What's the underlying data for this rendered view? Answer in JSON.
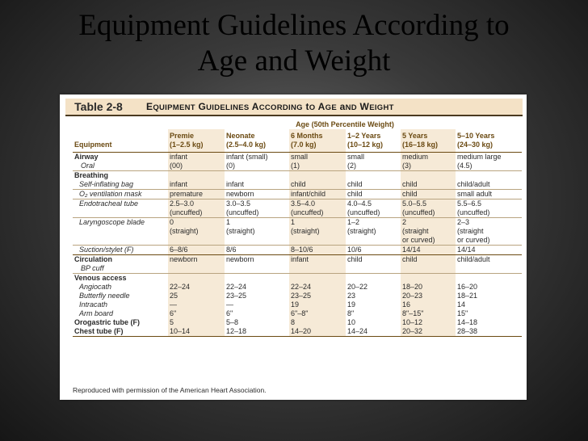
{
  "slide": {
    "title_line1": "Equipment Guidelines According to",
    "title_line2": "Age and Weight"
  },
  "table": {
    "number": "Table 2-8",
    "name": "Equipment Guidelines According to Age and Weight",
    "age_header": "Age (50th Percentile Weight)",
    "columns": [
      {
        "l1": "Equipment",
        "l2": ""
      },
      {
        "l1": "Premie",
        "l2": "(1–2.5 kg)"
      },
      {
        "l1": "Neonate",
        "l2": "(2.5–4.0 kg)"
      },
      {
        "l1": "6 Months",
        "l2": "(7.0 kg)"
      },
      {
        "l1": "1–2 Years",
        "l2": "(10–12 kg)"
      },
      {
        "l1": "5 Years",
        "l2": "(16–18 kg)"
      },
      {
        "l1": "5–10 Years",
        "l2": "(24–30 kg)"
      }
    ],
    "rows": {
      "airway": {
        "label": "Airway",
        "sub": "Oral",
        "v": [
          "infant\n(00)",
          "infant (small)\n(0)",
          "small\n(1)",
          "small\n(2)",
          "medium\n(3)",
          "medium large\n(4.5)"
        ]
      },
      "breathing": {
        "label": "Breathing"
      },
      "bag": {
        "label": "Self-inflating bag",
        "v": [
          "infant",
          "infant",
          "child",
          "child",
          "child",
          "child/adult"
        ]
      },
      "mask": {
        "label": "O₂ ventilation mask",
        "v": [
          "premature",
          "newborn",
          "infant/child",
          "child",
          "child",
          "small adult"
        ]
      },
      "tube": {
        "label": "Endotracheal tube",
        "v": [
          "2.5–3.0\n(uncuffed)",
          "3.0–3.5\n(uncuffed)",
          "3.5–4.0\n(uncuffed)",
          "4.0–4.5\n(uncuffed)",
          "5.0–5.5\n(uncuffed)",
          "5.5–6.5\n(uncuffed)"
        ]
      },
      "blade": {
        "label": "Laryngoscope blade",
        "v": [
          "0\n(straight)",
          "1\n(straight)",
          "1\n(straight)",
          "1–2\n(straight)",
          "2\n(straight\nor curved)",
          "2–3\n(straight\nor curved)"
        ]
      },
      "suction": {
        "label": "Suction/stylet (F)",
        "v": [
          "6–8/6",
          "8/6",
          "8–10/6",
          "10/6",
          "14/14",
          "14/14"
        ]
      },
      "circulation": {
        "label": "Circulation",
        "sub": "BP cuff",
        "v": [
          "newborn",
          "newborn",
          "infant",
          "child",
          "child",
          "child/adult"
        ]
      },
      "venous": {
        "label": "Venous access"
      },
      "angio": {
        "label": "Angiocath",
        "v": [
          "22–24",
          "22–24",
          "22–24",
          "20–22",
          "18–20",
          "16–20"
        ]
      },
      "butterfly": {
        "label": "Butterfly needle",
        "v": [
          "25",
          "23–25",
          "23–25",
          "23",
          "20–23",
          "18–21"
        ]
      },
      "intracath": {
        "label": "Intracath",
        "v": [
          "—",
          "—",
          "19",
          "19",
          "16",
          "14"
        ]
      },
      "armboard": {
        "label": "Arm board",
        "v": [
          "6\"",
          "6\"",
          "6\"–8\"",
          "8\"",
          "8\"–15\"",
          "15\""
        ]
      },
      "orogastric": {
        "label": "Orogastric tube (F)",
        "v": [
          "5",
          "5–8",
          "8",
          "10",
          "10–12",
          "14–18"
        ]
      },
      "chest": {
        "label": "Chest tube (F)",
        "v": [
          "10–14",
          "12–18",
          "14–20",
          "14–24",
          "20–32",
          "28–38"
        ]
      }
    },
    "footnote": "Reproduced with permission of the American Heart Association."
  }
}
